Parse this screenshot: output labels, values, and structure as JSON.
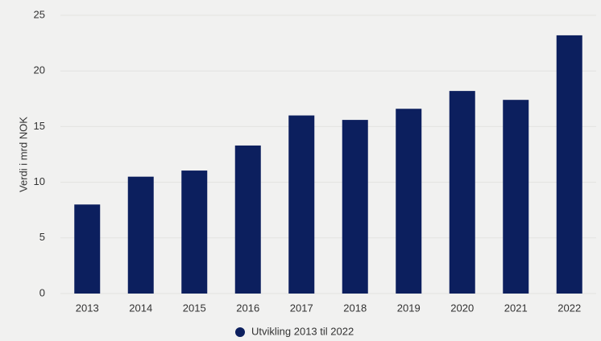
{
  "chart_data": {
    "type": "bar",
    "y_label": "Verdi i mrd NOK",
    "categories": [
      "2013",
      "2014",
      "2015",
      "2016",
      "2017",
      "2018",
      "2019",
      "2020",
      "2021",
      "2022"
    ],
    "series": [
      {
        "name": "Utvikling 2013 til 2022",
        "color": "#0c1f5e",
        "values": [
          8.0,
          10.5,
          11.05,
          13.3,
          16.0,
          15.6,
          16.6,
          18.2,
          17.4,
          23.2
        ]
      }
    ],
    "ylim": [
      0,
      25
    ],
    "yticks": [
      0,
      5,
      10,
      15,
      20,
      25
    ],
    "grid": true
  }
}
